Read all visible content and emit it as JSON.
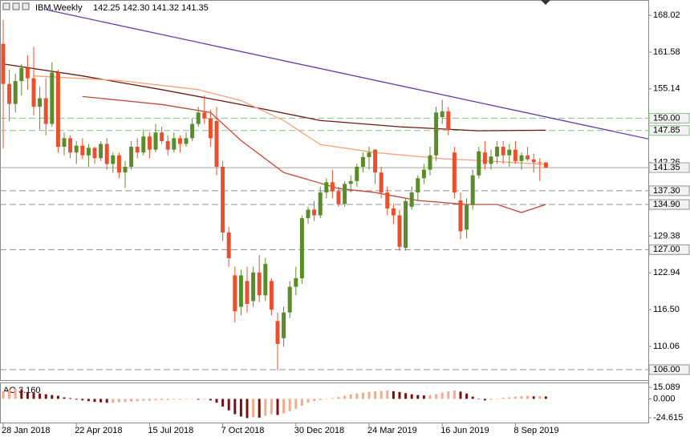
{
  "chart_data": {
    "type": "candlestick",
    "title": "IBM,Weekly",
    "ohlc_label": "142.25 142.30 141.32 141.35",
    "categories": [
      "28 Jan 2018",
      null,
      null,
      null,
      null,
      null,
      null,
      null,
      null,
      null,
      null,
      null,
      "22 Apr 2018",
      null,
      null,
      null,
      null,
      null,
      null,
      null,
      null,
      null,
      null,
      null,
      "15 Jul 2018",
      null,
      null,
      null,
      null,
      null,
      null,
      null,
      null,
      null,
      null,
      null,
      "7 Oct 2018",
      null,
      null,
      null,
      null,
      null,
      null,
      null,
      null,
      null,
      null,
      null,
      "30 Dec 2018",
      null,
      null,
      null,
      null,
      null,
      null,
      null,
      null,
      null,
      null,
      null,
      "24 Mar 2019",
      null,
      null,
      null,
      null,
      null,
      null,
      null,
      null,
      null,
      null,
      null,
      "16 Jun 2019",
      null,
      null,
      null,
      null,
      null,
      null,
      null,
      null,
      null,
      null,
      null,
      "8 Sep 2019",
      null,
      null,
      null,
      null,
      null
    ],
    "open": [
      163.0,
      156.0,
      152.5,
      156.5,
      158.8,
      157.0,
      152.0,
      153.5,
      149.0,
      158.0,
      145.0,
      146.5,
      144.0,
      145.2,
      143.5,
      144.8,
      143.0,
      145.5,
      142.0,
      143.5,
      140.5,
      141.5,
      145.0,
      144.0,
      146.8,
      144.5,
      147.5,
      146.0,
      144.5,
      146.5,
      145.5,
      146.5,
      149.0,
      151.0,
      150.0,
      149.5,
      141.5,
      130.0,
      122.5,
      117.0,
      121.5,
      118.0,
      123.0,
      119.0,
      121.5,
      114.5,
      111.5,
      116.0,
      120.5,
      122.0,
      132.5,
      134.0,
      133.0,
      137.0,
      138.8,
      137.2,
      135.0,
      138.5,
      139.0,
      141.5,
      143.2,
      144.5,
      140.5,
      137.0,
      134.2,
      133.0,
      127.3,
      134.5,
      137.0,
      139.5,
      141.0,
      143.5,
      150.2,
      151.2,
      144.0,
      135.6,
      130.5,
      134.8,
      140.0,
      144.0,
      142.0,
      143.3,
      145.0,
      143.5,
      144.5,
      142.5,
      143.5,
      142.8,
      142.3,
      142.25
    ],
    "high": [
      167.2,
      158.5,
      157.8,
      159.5,
      161.0,
      162.5,
      155.5,
      157.0,
      159.8,
      158.5,
      147.5,
      147.0,
      146.0,
      146.5,
      145.5,
      145.0,
      146.0,
      146.5,
      144.0,
      144.0,
      142.5,
      146.0,
      146.5,
      148.0,
      147.5,
      149.0,
      148.5,
      147.0,
      147.5,
      147.0,
      147.5,
      150.0,
      152.0,
      154.0,
      151.5,
      152.0,
      142.5,
      131.0,
      124.0,
      123.5,
      124.0,
      124.0,
      126.0,
      125.5,
      122.0,
      116.0,
      117.0,
      121.5,
      124.0,
      133.0,
      134.5,
      135.5,
      138.0,
      139.5,
      141.0,
      138.0,
      139.0,
      140.0,
      142.0,
      144.0,
      145.0,
      144.6,
      141.5,
      138.0,
      135.0,
      134.0,
      136.0,
      138.0,
      140.0,
      142.0,
      145.0,
      152.0,
      153.2,
      152.0,
      145.0,
      137.0,
      136.0,
      141.0,
      145.0,
      146.0,
      144.5,
      146.0,
      146.0,
      145.5,
      146.0,
      144.0,
      145.0,
      143.8,
      143.0,
      142.3
    ],
    "low": [
      144.7,
      149.5,
      151.0,
      154.0,
      155.0,
      150.5,
      148.0,
      147.0,
      148.5,
      144.0,
      143.5,
      143.0,
      142.0,
      142.8,
      141.5,
      142.0,
      142.5,
      141.0,
      140.5,
      139.5,
      137.8,
      141.0,
      143.0,
      143.5,
      143.0,
      144.0,
      145.5,
      143.5,
      144.0,
      144.0,
      145.0,
      146.0,
      148.5,
      149.0,
      145.0,
      140.0,
      128.5,
      124.0,
      114.3,
      115.5,
      116.0,
      117.0,
      117.8,
      118.0,
      115.5,
      105.9,
      110.0,
      115.0,
      119.0,
      121.0,
      131.5,
      132.0,
      132.5,
      136.0,
      136.0,
      134.5,
      134.5,
      137.0,
      138.0,
      140.5,
      141.0,
      138.5,
      136.0,
      133.0,
      131.5,
      126.8,
      126.8,
      134.0,
      135.5,
      138.5,
      140.0,
      142.5,
      149.0,
      147.0,
      136.0,
      128.8,
      129.0,
      134.0,
      139.5,
      141.0,
      141.0,
      142.0,
      142.0,
      141.5,
      142.0,
      141.0,
      142.5,
      140.5,
      139.0,
      141.32
    ],
    "close": [
      156.0,
      152.5,
      156.5,
      158.8,
      157.0,
      152.0,
      153.5,
      149.0,
      158.0,
      145.0,
      146.5,
      144.0,
      145.2,
      143.5,
      144.8,
      143.0,
      145.5,
      142.0,
      143.5,
      140.5,
      141.5,
      145.0,
      144.0,
      146.8,
      144.5,
      147.5,
      146.0,
      144.5,
      146.5,
      145.5,
      146.5,
      149.0,
      151.0,
      150.0,
      146.5,
      141.5,
      130.0,
      125.5,
      116.2,
      122.5,
      117.5,
      123.0,
      119.0,
      124.5,
      116.5,
      110.5,
      116.0,
      120.5,
      122.0,
      132.5,
      134.0,
      133.0,
      137.0,
      138.8,
      137.2,
      135.0,
      138.5,
      139.0,
      141.5,
      143.2,
      144.0,
      140.5,
      137.0,
      134.2,
      133.0,
      127.5,
      135.5,
      137.0,
      139.5,
      141.0,
      143.5,
      151.0,
      151.2,
      148.0,
      137.0,
      130.2,
      134.8,
      140.0,
      144.2,
      142.0,
      143.3,
      145.0,
      143.5,
      144.5,
      142.5,
      143.5,
      142.8,
      142.3,
      142.2,
      141.35
    ],
    "up_color": "#5b8c2a",
    "down_color": "#e9502d",
    "ylim": [
      104.17,
      170.69
    ],
    "yticks": [
      168.02,
      161.58,
      155.14,
      142.26,
      129.38,
      122.94,
      {
        "value": 116.5,
        "label": "116.50"
      },
      110.06
    ],
    "levels": [
      {
        "value": 150,
        "label": "150.00",
        "color": "#8fbf8f",
        "dashed": true
      },
      {
        "value": 147.85,
        "label": "147.85",
        "color": "#8fbf8f",
        "dashed": true
      },
      {
        "value": 141.35,
        "label": "141.35",
        "color": "#a0a0a0",
        "dashed": false
      },
      {
        "value": 137.3,
        "label": "137.30",
        "color": "#909090",
        "dashed": true
      },
      {
        "value": 134.9,
        "label": "134.90",
        "color": "#909090",
        "dashed": true
      },
      {
        "value": 127,
        "label": "127.00",
        "color": "#909090",
        "dashed": true
      },
      {
        "value": 106,
        "label": "106.00",
        "color": "#909090",
        "dashed": true
      }
    ],
    "overlays": [
      {
        "color": "#6a1a10",
        "points": [
          [
            0,
            159.5
          ],
          [
            13,
            157.4
          ],
          [
            26,
            155.0
          ],
          [
            39,
            152.4
          ],
          [
            52,
            149.6
          ],
          [
            65,
            148.5
          ],
          [
            78,
            147.8
          ],
          [
            89,
            147.9
          ]
        ]
      },
      {
        "color": "#f4a27c",
        "points": [
          [
            5,
            157.4
          ],
          [
            19,
            156.6
          ],
          [
            32,
            155.0
          ],
          [
            39,
            153.1
          ],
          [
            46,
            149.6
          ],
          [
            52,
            145.4
          ],
          [
            61,
            144.0
          ],
          [
            72,
            142.9
          ],
          [
            78,
            142.6
          ],
          [
            89,
            141.9
          ]
        ]
      },
      {
        "color": "#c0493a",
        "points": [
          [
            13,
            153.8
          ],
          [
            26,
            152.4
          ],
          [
            34,
            151.0
          ],
          [
            39,
            146.1
          ],
          [
            46,
            140.5
          ],
          [
            55,
            137.7
          ],
          [
            61,
            137.0
          ],
          [
            68,
            135.6
          ],
          [
            76,
            134.9
          ],
          [
            81,
            134.9
          ],
          [
            85,
            133.5
          ],
          [
            89,
            134.9
          ]
        ]
      },
      {
        "color": "#6a3aa8",
        "points": [
          [
            7,
            169.0
          ],
          [
            107,
            146.1
          ]
        ]
      }
    ],
    "indicator": {
      "label": "AO 3.160",
      "values": [
        10,
        12,
        13,
        11,
        9,
        8,
        7,
        6,
        5,
        4,
        2,
        1,
        -1,
        -2,
        -3,
        -4,
        -4.5,
        -5,
        -5,
        -4.5,
        -4,
        -3.5,
        -3,
        -2.5,
        -2.5,
        -2,
        -1.5,
        -1.5,
        -1,
        -1,
        -0.5,
        -0.5,
        -1,
        -1,
        -2,
        -5,
        -10,
        -15,
        -20,
        -23,
        -25,
        -24,
        -24.5,
        -22,
        -20,
        -21,
        -19,
        -16,
        -13,
        -9,
        -5,
        -3,
        -1.5,
        -0.5,
        1,
        2.5,
        4,
        6,
        7,
        8,
        9,
        10,
        10.5,
        11,
        10,
        9,
        7.5,
        6,
        5,
        4.5,
        5,
        6,
        8,
        10,
        11,
        9.5,
        7,
        3,
        -0.5,
        -2,
        -1.5,
        0.5,
        1.5,
        2,
        3,
        3.5,
        3.8,
        3.3,
        3.5,
        3.16
      ],
      "up_color": "#f4a98c",
      "down_color": "#7a1010",
      "ylim": [
        -30.88,
        21.36
      ],
      "yticks": [
        15.089,
        {
          "value": 0,
          "label": "0.000"
        },
        -24.615
      ]
    }
  }
}
